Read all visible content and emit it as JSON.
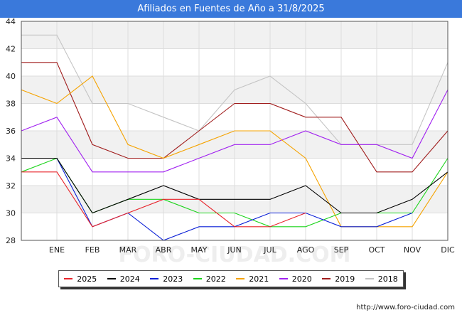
{
  "chart_data": {
    "type": "line",
    "title": "Afiliados en Fuentes de Año a 31/8/2025",
    "categories": [
      "",
      "ENE",
      "FEB",
      "MAR",
      "ABR",
      "MAY",
      "JUN",
      "JUL",
      "AGO",
      "SEP",
      "OCT",
      "NOV",
      "DIC"
    ],
    "ylim": [
      28,
      44
    ],
    "yticks": [
      28,
      30,
      32,
      34,
      36,
      38,
      40,
      42,
      44
    ],
    "grid": true,
    "watermark": "FORO-CIUDAD.COM",
    "series": [
      {
        "name": "2025",
        "color": "#e8232a",
        "values": [
          33,
          33,
          29,
          30,
          31,
          31,
          29,
          29,
          30,
          null,
          null,
          null,
          null
        ]
      },
      {
        "name": "2024",
        "color": "#000000",
        "values": [
          34,
          34,
          30,
          31,
          32,
          31,
          31,
          31,
          32,
          30,
          30,
          31,
          33
        ]
      },
      {
        "name": "2023",
        "color": "#0a1fd6",
        "values": [
          34,
          34,
          29,
          30,
          28,
          29,
          29,
          30,
          30,
          29,
          29,
          30,
          null
        ]
      },
      {
        "name": "2022",
        "color": "#1bd41b",
        "values": [
          33,
          34,
          30,
          31,
          31,
          30,
          30,
          29,
          29,
          30,
          30,
          30,
          34
        ]
      },
      {
        "name": "2021",
        "color": "#f5a300",
        "values": [
          39,
          38,
          40,
          35,
          34,
          35,
          36,
          36,
          34,
          29,
          29,
          29,
          33
        ]
      },
      {
        "name": "2020",
        "color": "#a020f0",
        "values": [
          36,
          37,
          33,
          33,
          33,
          34,
          35,
          35,
          36,
          35,
          35,
          34,
          39
        ]
      },
      {
        "name": "2019",
        "color": "#a01c1c",
        "values": [
          41,
          41,
          35,
          34,
          34,
          36,
          38,
          38,
          37,
          37,
          33,
          33,
          36
        ]
      },
      {
        "name": "2018",
        "color": "#c4c4c4",
        "values": [
          43,
          43,
          38,
          38,
          37,
          36,
          39,
          40,
          38,
          35,
          35,
          35,
          41
        ]
      }
    ]
  },
  "source": "http://www.foro-ciudad.com"
}
